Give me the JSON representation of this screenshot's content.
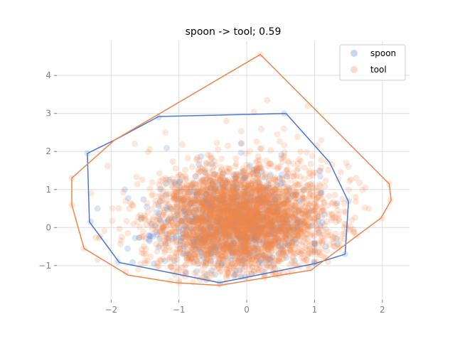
{
  "chart_data": {
    "type": "scatter",
    "title": "spoon -> tool; 0.59",
    "xlabel": "",
    "ylabel": "",
    "xlim": [
      -2.8,
      2.4
    ],
    "ylim": [
      -1.9,
      4.9
    ],
    "xticks": [
      -2,
      -1,
      0,
      1,
      2
    ],
    "yticks": [
      -1,
      0,
      1,
      2,
      3,
      4
    ],
    "xtick_labels": [
      "−2",
      "−1",
      "0",
      "1",
      "2"
    ],
    "ytick_labels": [
      "−1",
      "0",
      "1",
      "2",
      "3",
      "4"
    ],
    "grid": true,
    "legend_position": "top-right",
    "series": [
      {
        "name": "spoon",
        "color": "#4878cf",
        "point_alpha": 0.2,
        "cloud": {
          "center": [
            -0.2,
            0.2
          ],
          "spread": [
            0.55,
            0.65
          ],
          "count": 700,
          "seed": 11
        },
        "outliers": [
          [
            -2.35,
            1.95
          ],
          [
            -2.3,
            0.15
          ],
          [
            -1.3,
            2.9
          ],
          [
            0.55,
            3.0
          ],
          [
            1.45,
            -0.7
          ],
          [
            1.5,
            0.7
          ],
          [
            -1.9,
            -0.9
          ],
          [
            -0.4,
            -1.45
          ],
          [
            1.0,
            -0.95
          ],
          [
            -2.2,
            0.5
          ],
          [
            -1.8,
            1.0
          ]
        ],
        "hull": [
          [
            -2.35,
            1.95
          ],
          [
            -1.95,
            2.3
          ],
          [
            -1.3,
            2.92
          ],
          [
            0.58,
            3.0
          ],
          [
            1.22,
            1.72
          ],
          [
            1.5,
            0.68
          ],
          [
            1.45,
            -0.7
          ],
          [
            1.0,
            -0.95
          ],
          [
            -0.4,
            -1.45
          ],
          [
            -1.88,
            -0.92
          ],
          [
            -2.32,
            0.15
          ]
        ]
      },
      {
        "name": "tool",
        "color": "#ee854a",
        "point_alpha": 0.2,
        "cloud": {
          "center": [
            -0.1,
            0.2
          ],
          "spread": [
            0.65,
            0.7
          ],
          "count": 3200,
          "seed": 29
        },
        "outliers": [
          [
            0.2,
            4.55
          ],
          [
            2.1,
            1.15
          ],
          [
            2.12,
            0.72
          ],
          [
            2.0,
            0.25
          ],
          [
            -2.58,
            1.3
          ],
          [
            -2.58,
            0.6
          ],
          [
            -2.4,
            -0.55
          ],
          [
            -0.4,
            -1.5
          ],
          [
            0.3,
            3.35
          ],
          [
            0.9,
            3.2
          ],
          [
            1.5,
            1.6
          ],
          [
            1.8,
            0.5
          ],
          [
            -2.2,
            -0.85
          ],
          [
            -1.0,
            -1.4
          ],
          [
            -1.65,
            2.2
          ],
          [
            1.2,
            -0.9
          ],
          [
            -1.6,
            -1.1
          ],
          [
            1.75,
            1.05
          ],
          [
            -2.3,
            0.9
          ],
          [
            0.55,
            2.6
          ],
          [
            1.1,
            2.3
          ],
          [
            -0.3,
            2.8
          ],
          [
            -1.2,
            2.5
          ]
        ],
        "hull": [
          [
            -2.58,
            1.3
          ],
          [
            -1.95,
            2.3
          ],
          [
            0.2,
            4.55
          ],
          [
            2.1,
            1.15
          ],
          [
            2.13,
            0.72
          ],
          [
            1.98,
            0.25
          ],
          [
            0.95,
            -1.12
          ],
          [
            -0.4,
            -1.52
          ],
          [
            -1.05,
            -1.45
          ],
          [
            -1.75,
            -1.25
          ],
          [
            -2.4,
            -0.55
          ],
          [
            -2.58,
            0.6
          ]
        ]
      }
    ]
  }
}
